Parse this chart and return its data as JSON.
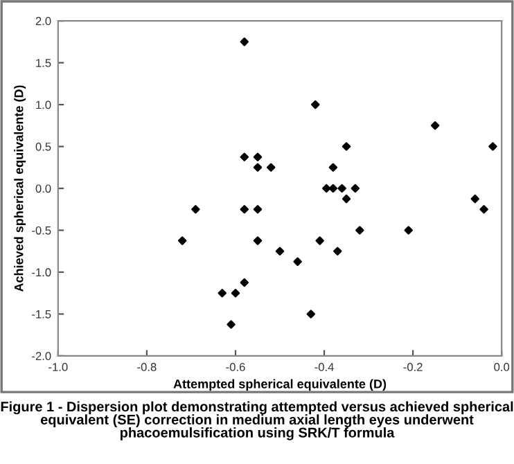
{
  "chart_data": {
    "type": "scatter",
    "xlabel": "Attempted spherical equivalente (D)",
    "ylabel": "Achieved spherical equivalente (D)",
    "annotations": [
      "Figure 1 - Dispersion plot demonstrating attempted versus achieved spherical equivalent (SE) correction in medium axial length eyes underwent phacoemulsification using SRK/T formula"
    ],
    "x": [
      -0.58,
      -0.58,
      -0.55,
      -0.55,
      -0.52,
      -0.69,
      -0.58,
      -0.55,
      -0.72,
      -0.55,
      -0.5,
      -0.58,
      -0.63,
      -0.6,
      -0.61,
      -0.42,
      -0.15,
      -0.35,
      -0.02,
      -0.38,
      -0.395,
      -0.38,
      -0.36,
      -0.33,
      -0.35,
      -0.06,
      -0.04,
      -0.32,
      -0.21,
      -0.41,
      -0.37,
      -0.46,
      -0.43
    ],
    "values": [
      1.75,
      0.375,
      0.375,
      0.25,
      0.25,
      -0.25,
      -0.25,
      -0.25,
      -0.625,
      -0.625,
      -0.75,
      -1.125,
      -1.25,
      -1.25,
      -1.625,
      1.0,
      0.75,
      0.5,
      0.5,
      0.25,
      0,
      0,
      0,
      0,
      -0.125,
      -0.125,
      -0.25,
      -0.5,
      -0.5,
      -0.625,
      -0.75,
      -0.875,
      -1.5
    ],
    "color": "#000000",
    "marker": "diamond",
    "grid": false,
    "legend": false,
    "xlim": [
      -1.0,
      0.0
    ],
    "xticks": [
      {
        "value": -1.0,
        "label": "-1.0"
      },
      {
        "value": -0.8,
        "label": "-0.8"
      },
      {
        "value": -0.6,
        "label": "-0.6"
      },
      {
        "value": -0.4,
        "label": "-0.4"
      },
      {
        "value": -0.2,
        "label": "-0.2"
      },
      {
        "value": 0.0,
        "label": "0.0"
      }
    ],
    "ylim": [
      -2.0,
      2.0
    ],
    "yticks": [
      {
        "value": -2.0,
        "label": "-2.0"
      },
      {
        "value": -1.5,
        "label": "-1.5"
      },
      {
        "value": -1.0,
        "label": "-1.0"
      },
      {
        "value": -0.5,
        "label": "-0.5"
      },
      {
        "value": 0.0,
        "label": "0.0"
      },
      {
        "value": 0.5,
        "label": "0.5"
      },
      {
        "value": 1.0,
        "label": "1.0"
      },
      {
        "value": 1.5,
        "label": "1.5"
      },
      {
        "value": 2.0,
        "label": "2.0"
      }
    ]
  }
}
